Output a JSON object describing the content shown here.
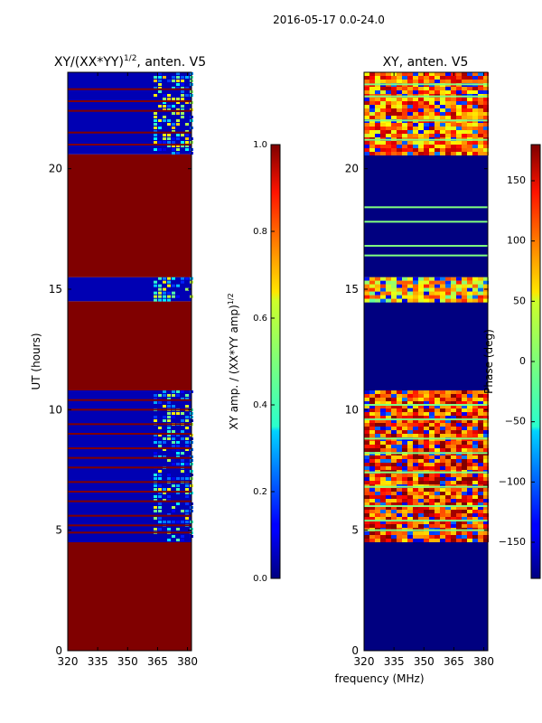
{
  "figure": {
    "suptitle": "2016-05-17 0.0-24.0",
    "shared_xlabel": "frequency (MHz)"
  },
  "chart_data": [
    {
      "type": "heatmap",
      "title": "XY/(XX*YY)",
      "title_exponent": "1/2",
      "title_suffix": ", anten. V5",
      "xlabel": "",
      "ylabel": "UT (hours)",
      "xlim": [
        320,
        382
      ],
      "ylim": [
        0,
        24
      ],
      "xticks": [
        320,
        335,
        350,
        365,
        380
      ],
      "yticks": [
        0,
        5,
        10,
        15,
        20
      ],
      "colorbar": {
        "label": "XY amp. / (XX*YY amp)",
        "label_exponent": "1/2",
        "range": [
          0.0,
          1.0
        ],
        "ticks": [
          "0.0",
          "0.2",
          "0.4",
          "0.6",
          "0.8",
          "1.0"
        ]
      },
      "bands": [
        {
          "from": 0.0,
          "to": 4.5,
          "value": 1.0
        },
        {
          "from": 4.5,
          "to": 10.8,
          "value": 0.05,
          "active_from_mhz": 363,
          "active_value": 0.35
        },
        {
          "from": 10.8,
          "to": 14.5,
          "value": 1.0
        },
        {
          "from": 14.5,
          "to": 15.5,
          "value": 0.05,
          "active_from_mhz": 363,
          "active_value": 0.4
        },
        {
          "from": 15.5,
          "to": 20.6,
          "value": 1.0
        },
        {
          "from": 20.6,
          "to": 24.0,
          "value": 0.05,
          "active_from_mhz": 363,
          "active_value": 0.4
        }
      ],
      "stripes_hours": [
        23.3,
        22.8,
        22.4,
        21.5,
        21.0,
        18.6,
        18.2,
        17.6,
        17.0,
        16.5,
        16.2,
        10.4,
        10.0,
        9.4,
        9.0,
        8.4,
        8.0,
        7.6,
        7.0,
        6.6,
        6.2,
        5.6,
        5.2,
        4.9
      ],
      "stripe_value": 1.0
    },
    {
      "type": "heatmap",
      "title": "XY, anten. V5",
      "xlabel": "frequency (MHz)",
      "ylabel": "",
      "xlim": [
        320,
        382
      ],
      "ylim": [
        0,
        24
      ],
      "xticks": [
        320,
        335,
        350,
        365,
        380
      ],
      "yticks": [
        0,
        5,
        10,
        15,
        20
      ],
      "colorbar": {
        "label": "Phase (deg)",
        "range": [
          -180,
          180
        ],
        "ticks": [
          "−150",
          "−100",
          "−50",
          "0",
          "50",
          "100",
          "150"
        ]
      },
      "bands": [
        {
          "from": 0.0,
          "to": 4.5,
          "value": -180
        },
        {
          "from": 4.5,
          "to": 10.8,
          "value": 120,
          "variable": true
        },
        {
          "from": 10.8,
          "to": 14.5,
          "value": -180
        },
        {
          "from": 14.5,
          "to": 15.5,
          "value": 60,
          "variable": true
        },
        {
          "from": 15.5,
          "to": 20.6,
          "value": -180
        },
        {
          "from": 20.6,
          "to": 24.0,
          "value": 100,
          "variable": true
        }
      ],
      "stripes_hours": [
        23.5,
        23.0,
        22.0,
        21.2,
        18.4,
        17.8,
        16.8,
        16.4,
        10.2,
        9.6,
        8.8,
        8.2,
        7.4,
        6.8,
        6.0,
        5.4,
        5.0
      ],
      "stripe_value": 0
    }
  ]
}
